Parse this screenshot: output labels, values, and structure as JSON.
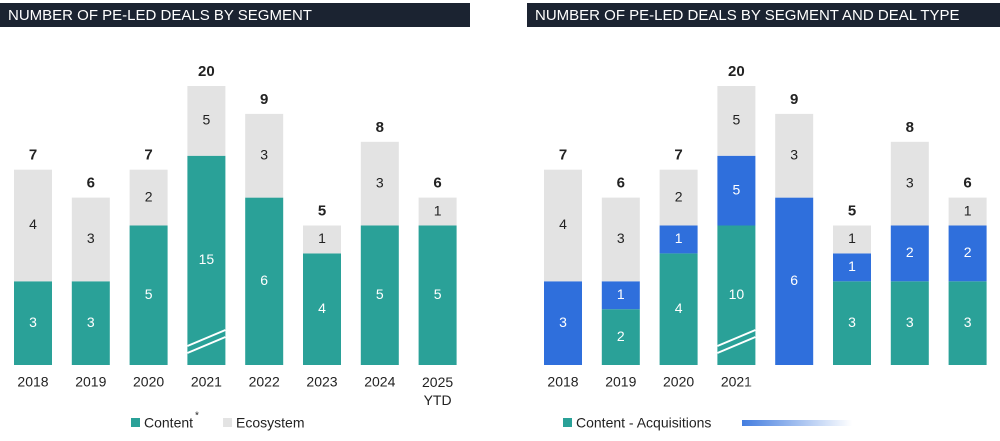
{
  "chart_data": [
    {
      "type": "bar",
      "stacked": true,
      "title": "NUMBER OF PE-LED DEALS BY SEGMENT",
      "categories": [
        "2018",
        "2019",
        "2020",
        "2021",
        "2022",
        "2023",
        "2024",
        "2025 YTD"
      ],
      "series": [
        {
          "name": "Content",
          "color": "#2aa198",
          "values": [
            3,
            3,
            5,
            15,
            6,
            4,
            5,
            5
          ]
        },
        {
          "name": "Ecosystem",
          "color": "#e3e3e3",
          "values": [
            4,
            3,
            2,
            5,
            3,
            1,
            3,
            1
          ]
        }
      ],
      "totals": [
        7,
        6,
        7,
        20,
        9,
        5,
        8,
        6
      ],
      "legend_note": "*"
    },
    {
      "type": "bar",
      "stacked": true,
      "title": "NUMBER OF PE-LED DEALS BY SEGMENT AND DEAL TYPE",
      "categories": [
        "2018",
        "2019",
        "2020",
        "2021",
        null,
        null,
        null,
        null
      ],
      "series": [
        {
          "name": "Content - Acquisitions",
          "color": "#2aa198",
          "values": [
            null,
            2,
            4,
            10,
            null,
            3,
            3,
            3
          ]
        },
        {
          "color": "#2f6fdc",
          "values": [
            3,
            1,
            1,
            5,
            6,
            1,
            2,
            2
          ]
        },
        {
          "color": "#e3e3e3",
          "values": [
            4,
            3,
            2,
            5,
            3,
            1,
            3,
            1
          ]
        }
      ],
      "totals": [
        7,
        6,
        7,
        20,
        9,
        5,
        8,
        6
      ]
    }
  ]
}
